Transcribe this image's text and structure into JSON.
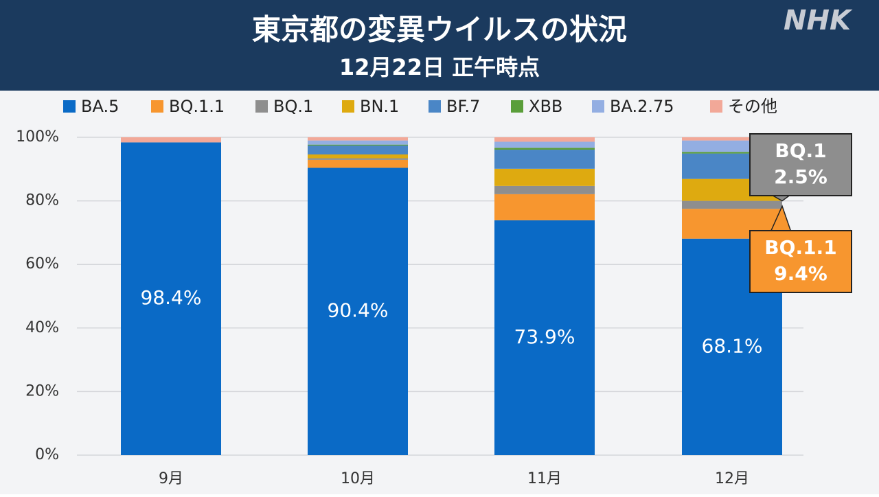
{
  "logo": "NHK",
  "chart_data": {
    "type": "stacked-bar",
    "title": "東京都の変異ウイルスの状況",
    "subtitle": "12月22日 正午時点",
    "categories": [
      "9月",
      "10月",
      "11月",
      "12月"
    ],
    "ylim": [
      0,
      100
    ],
    "yticks": [
      {
        "value": 0,
        "label": "0%"
      },
      {
        "value": 20,
        "label": "20%"
      },
      {
        "value": 40,
        "label": "40%"
      },
      {
        "value": 60,
        "label": "60%"
      },
      {
        "value": 80,
        "label": "80%"
      },
      {
        "value": 100,
        "label": "100%"
      }
    ],
    "grid": true,
    "series": [
      {
        "name": "BA.5",
        "color": "#0a6ac6",
        "values": [
          98.4,
          90.4,
          73.9,
          68.1
        ],
        "value_labels": [
          "98.4%",
          "90.4%",
          "73.9%",
          "68.1%"
        ]
      },
      {
        "name": "BQ.1.1",
        "color": "#f7962f",
        "values": [
          0,
          2.5,
          8.2,
          9.4
        ],
        "value_labels": [
          null,
          null,
          null,
          "9.4%"
        ]
      },
      {
        "name": "BQ.1",
        "color": "#8e8e8e",
        "values": [
          0,
          0.5,
          2.6,
          2.5
        ],
        "value_labels": [
          null,
          null,
          null,
          "2.5%"
        ]
      },
      {
        "name": "BN.1",
        "color": "#deaa10",
        "values": [
          0,
          1.2,
          5.4,
          6.9
        ]
      },
      {
        "name": "BF.7",
        "color": "#4a86c6",
        "values": [
          0,
          2.8,
          6.0,
          8.0
        ]
      },
      {
        "name": "XBB",
        "color": "#5a9e3a",
        "values": [
          0,
          0.3,
          0.6,
          0.5
        ]
      },
      {
        "name": "BA.2.75",
        "color": "#93aee2",
        "values": [
          0,
          1.3,
          1.9,
          3.6
        ]
      },
      {
        "name": "その他",
        "color": "#f2a898",
        "values": [
          1.6,
          1.0,
          1.4,
          1.0
        ]
      }
    ]
  }
}
